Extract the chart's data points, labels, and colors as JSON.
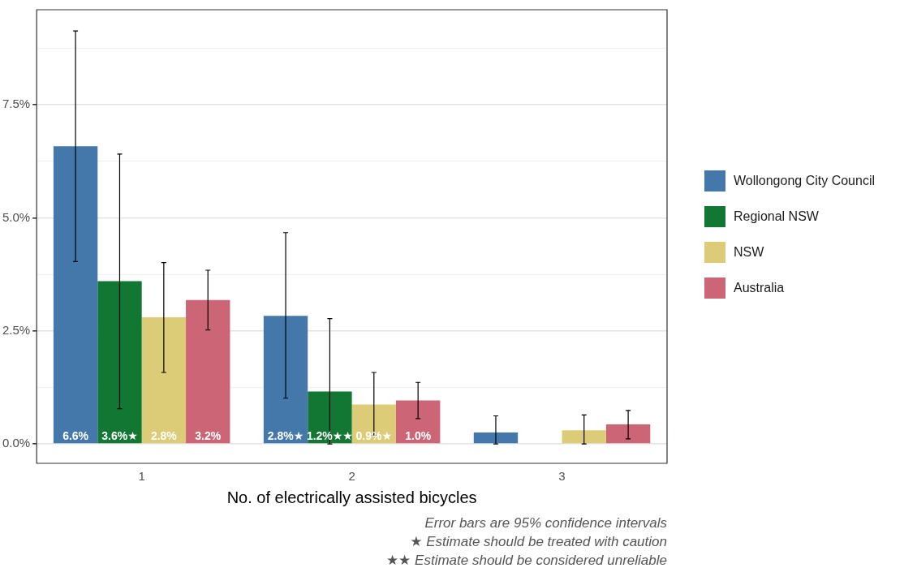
{
  "chart_data": {
    "type": "bar",
    "xlabel": "No. of electrically assisted bicycles",
    "categories": [
      "1",
      "2",
      "3"
    ],
    "series": [
      {
        "name": "Wollongong City Council",
        "color": "#4477aa",
        "values": [
          6.58,
          2.83,
          0.25
        ],
        "errors": [
          [
            4.03,
            9.13
          ],
          [
            1.01,
            4.67
          ],
          [
            0,
            0.62
          ]
        ],
        "value_labels": [
          "6.6%",
          "2.8%★",
          null
        ]
      },
      {
        "name": "Regional NSW",
        "color": "#117733",
        "values": [
          3.6,
          1.16,
          0
        ],
        "errors": [
          [
            0.78,
            6.41
          ],
          [
            0,
            2.77
          ],
          null
        ],
        "value_labels": [
          "3.6%★",
          "1.2%★★",
          null
        ]
      },
      {
        "name": "NSW",
        "color": "#ddcc77",
        "values": [
          2.8,
          0.87,
          0.3
        ],
        "errors": [
          [
            1.58,
            4.01
          ],
          [
            0.19,
            1.58
          ],
          [
            0,
            0.64
          ]
        ],
        "value_labels": [
          "2.8%",
          "0.9%★",
          null
        ]
      },
      {
        "name": "Australia",
        "color": "#cc6677",
        "values": [
          3.18,
          0.96,
          0.43
        ],
        "errors": [
          [
            2.52,
            3.84
          ],
          [
            0.56,
            1.36
          ],
          [
            0.11,
            0.74
          ]
        ],
        "value_labels": [
          "3.2%",
          "1.0%",
          null
        ]
      }
    ],
    "ylim": [
      -0.43,
      9.6
    ],
    "yticks": [
      {
        "value": 0,
        "label": "0.0%"
      },
      {
        "value": 1.25,
        "label": null
      },
      {
        "value": 2.5,
        "label": "2.5%"
      },
      {
        "value": 3.75,
        "label": null
      },
      {
        "value": 5,
        "label": "5.0%"
      },
      {
        "value": 6.25,
        "label": null
      },
      {
        "value": 7.5,
        "label": "7.5%"
      },
      {
        "value": 8.75,
        "label": null
      }
    ],
    "grid": "y",
    "legend": "right",
    "annotations": [
      "Error bars are 95% confidence intervals",
      "★ Estimate should be treated with caution",
      "★★ Estimate should be considered unreliable"
    ]
  }
}
